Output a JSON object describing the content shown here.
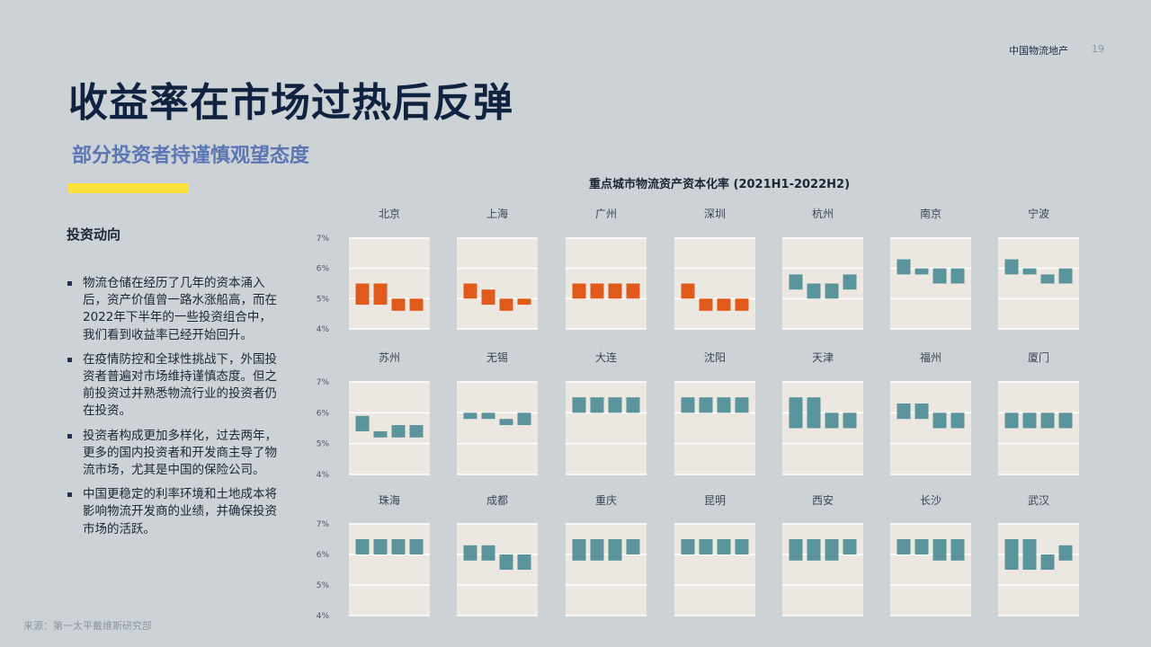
{
  "header": {
    "brand": "中国物流地产",
    "page_number": "19"
  },
  "title": "收益率在市场过热后反弹",
  "subtitle": "部分投资者持谨慎观望态度",
  "left_panel": {
    "heading": "投资动向",
    "bullets": [
      "物流仓储在经历了几年的资本涌入后，资产价值曾一路水涨船高，而在2022年下半年的一些投资组合中，我们看到收益率已经开始回升。",
      "在疫情防控和全球性挑战下，外国投资者普遍对市场维持谨慎态度。但之前投资过并熟悉物流行业的投资者仍在投资。",
      "投资者构成更加多样化，过去两年，更多的国内投资者和开发商主导了物流市场，尤其是中国的保险公司。",
      "中国更稳定的利率环境和土地成本将影响物流开发商的业绩，并确保投资市场的活跃。"
    ]
  },
  "source": "来源：第一太平戴维斯研究部",
  "chart_data": {
    "type": "bar",
    "title": "重点城市物流资产资本化率 (2021H1-2022H2)",
    "y_tick_labels": [
      "7%",
      "6%",
      "5%",
      "4%"
    ],
    "ylim": [
      4,
      7
    ],
    "grid": true,
    "colors": {
      "rising": "#e05a1b",
      "stable": "#5b949c",
      "panel_bg": "#ece8e1",
      "grid": "#ffffff"
    },
    "value_format": "each period is a floating bar spanning [low, high] cap rate in %",
    "rows": [
      [
        {
          "city": "北京",
          "color": "rising",
          "ranges": [
            [
              4.8,
              5.5
            ],
            [
              4.8,
              5.5
            ],
            [
              4.6,
              5.0
            ],
            [
              4.6,
              5.0
            ]
          ]
        },
        {
          "city": "上海",
          "color": "rising",
          "ranges": [
            [
              5.0,
              5.5
            ],
            [
              4.8,
              5.3
            ],
            [
              4.6,
              5.0
            ],
            [
              4.8,
              5.0
            ]
          ]
        },
        {
          "city": "广州",
          "color": "rising",
          "ranges": [
            [
              5.0,
              5.5
            ],
            [
              5.0,
              5.5
            ],
            [
              5.0,
              5.5
            ],
            [
              5.0,
              5.5
            ]
          ]
        },
        {
          "city": "深圳",
          "color": "rising",
          "ranges": [
            [
              5.0,
              5.5
            ],
            [
              4.6,
              5.0
            ],
            [
              4.6,
              5.0
            ],
            [
              4.6,
              5.0
            ]
          ]
        },
        {
          "city": "杭州",
          "color": "stable",
          "ranges": [
            [
              5.3,
              5.8
            ],
            [
              5.0,
              5.5
            ],
            [
              5.0,
              5.5
            ],
            [
              5.3,
              5.8
            ]
          ]
        },
        {
          "city": "南京",
          "color": "stable",
          "ranges": [
            [
              5.8,
              6.3
            ],
            [
              5.8,
              6.0
            ],
            [
              5.5,
              6.0
            ],
            [
              5.5,
              6.0
            ]
          ]
        },
        {
          "city": "宁波",
          "color": "stable",
          "ranges": [
            [
              5.8,
              6.3
            ],
            [
              5.8,
              6.0
            ],
            [
              5.5,
              5.8
            ],
            [
              5.5,
              6.0
            ]
          ]
        }
      ],
      [
        {
          "city": "苏州",
          "color": "stable",
          "ranges": [
            [
              5.4,
              5.9
            ],
            [
              5.2,
              5.4
            ],
            [
              5.2,
              5.6
            ],
            [
              5.2,
              5.6
            ]
          ]
        },
        {
          "city": "无锡",
          "color": "stable",
          "ranges": [
            [
              5.8,
              6.0
            ],
            [
              5.8,
              6.0
            ],
            [
              5.6,
              5.8
            ],
            [
              5.6,
              6.0
            ]
          ]
        },
        {
          "city": "大连",
          "color": "stable",
          "ranges": [
            [
              6.0,
              6.5
            ],
            [
              6.0,
              6.5
            ],
            [
              6.0,
              6.5
            ],
            [
              6.0,
              6.5
            ]
          ]
        },
        {
          "city": "沈阳",
          "color": "stable",
          "ranges": [
            [
              6.0,
              6.5
            ],
            [
              6.0,
              6.5
            ],
            [
              6.0,
              6.5
            ],
            [
              6.0,
              6.5
            ]
          ]
        },
        {
          "city": "天津",
          "color": "stable",
          "ranges": [
            [
              5.5,
              6.5
            ],
            [
              5.5,
              6.5
            ],
            [
              5.5,
              6.0
            ],
            [
              5.5,
              6.0
            ]
          ]
        },
        {
          "city": "福州",
          "color": "stable",
          "ranges": [
            [
              5.8,
              6.3
            ],
            [
              5.8,
              6.3
            ],
            [
              5.5,
              6.0
            ],
            [
              5.5,
              6.0
            ]
          ]
        },
        {
          "city": "厦门",
          "color": "stable",
          "ranges": [
            [
              5.5,
              6.0
            ],
            [
              5.5,
              6.0
            ],
            [
              5.5,
              6.0
            ],
            [
              5.5,
              6.0
            ]
          ]
        }
      ],
      [
        {
          "city": "珠海",
          "color": "stable",
          "ranges": [
            [
              6.0,
              6.5
            ],
            [
              6.0,
              6.5
            ],
            [
              6.0,
              6.5
            ],
            [
              6.0,
              6.5
            ]
          ]
        },
        {
          "city": "成都",
          "color": "stable",
          "ranges": [
            [
              5.8,
              6.3
            ],
            [
              5.8,
              6.3
            ],
            [
              5.5,
              6.0
            ],
            [
              5.5,
              6.0
            ]
          ]
        },
        {
          "city": "重庆",
          "color": "stable",
          "ranges": [
            [
              5.8,
              6.5
            ],
            [
              5.8,
              6.5
            ],
            [
              5.8,
              6.5
            ],
            [
              6.0,
              6.5
            ]
          ]
        },
        {
          "city": "昆明",
          "color": "stable",
          "ranges": [
            [
              6.0,
              6.5
            ],
            [
              6.0,
              6.5
            ],
            [
              6.0,
              6.5
            ],
            [
              6.0,
              6.5
            ]
          ]
        },
        {
          "city": "西安",
          "color": "stable",
          "ranges": [
            [
              5.8,
              6.5
            ],
            [
              5.8,
              6.5
            ],
            [
              5.8,
              6.5
            ],
            [
              6.0,
              6.5
            ]
          ]
        },
        {
          "city": "长沙",
          "color": "stable",
          "ranges": [
            [
              6.0,
              6.5
            ],
            [
              6.0,
              6.5
            ],
            [
              5.8,
              6.5
            ],
            [
              5.8,
              6.5
            ]
          ]
        },
        {
          "city": "武汉",
          "color": "stable",
          "ranges": [
            [
              5.5,
              6.5
            ],
            [
              5.5,
              6.5
            ],
            [
              5.5,
              6.0
            ],
            [
              5.8,
              6.3
            ]
          ]
        }
      ]
    ]
  }
}
